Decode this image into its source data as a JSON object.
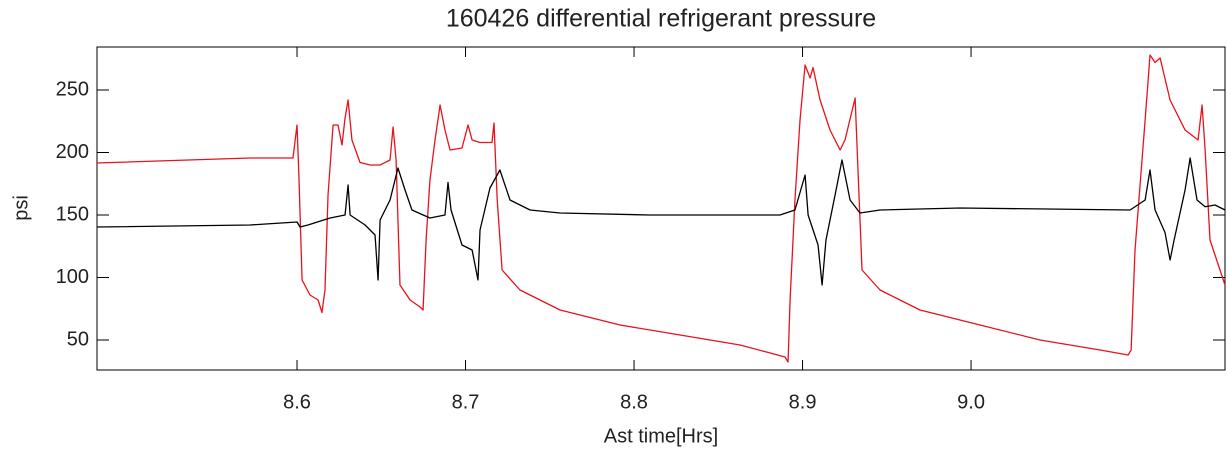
{
  "chart_data": {
    "type": "line",
    "title": "160426 differential refrigerant pressure",
    "xlabel": "Ast time[Hrs]",
    "ylabel": "psi",
    "xlim": [
      8.4813,
      9.1507
    ],
    "ylim": [
      26,
      284.4
    ],
    "xticks": [
      8.6,
      8.7,
      8.8,
      8.9,
      {
        "value": 9.0,
        "label": "9.0"
      }
    ],
    "yticks": [
      50,
      100,
      150,
      200,
      250
    ],
    "series": [
      {
        "name": "red",
        "color": "#e8121b",
        "x": [
          8.4813,
          8.5721,
          8.5976,
          8.6,
          8.6012,
          8.603,
          8.6077,
          8.6125,
          8.6148,
          8.6166,
          8.6184,
          8.6214,
          8.6243,
          8.6267,
          8.6285,
          8.6303,
          8.6326,
          8.6374,
          8.6433,
          8.6493,
          8.6552,
          8.657,
          8.6588,
          8.6611,
          8.6671,
          8.673,
          8.6748,
          8.6766,
          8.6789,
          8.6819,
          8.6849,
          8.6878,
          8.6908,
          8.6979,
          8.7015,
          8.7039,
          8.7086,
          8.7157,
          8.7169,
          8.7188,
          8.7217,
          8.7323,
          8.7561,
          8.7917,
          8.8273,
          8.8629,
          8.8896,
          8.8914,
          8.8926,
          8.8955,
          8.8985,
          8.9015,
          8.9045,
          8.9062,
          8.9104,
          8.9163,
          8.9223,
          8.9252,
          8.9312,
          8.9329,
          8.9353,
          8.946,
          8.9697,
          9.0053,
          9.0409,
          9.0766,
          9.0932,
          9.095,
          9.0973,
          9.1033,
          9.1062,
          9.1092,
          9.1122,
          9.1181,
          9.127,
          9.1347,
          9.1371,
          9.1389,
          9.1418,
          9.1507
        ],
        "values": [
          191.6,
          195.6,
          195.6,
          222,
          178,
          98,
          86,
          82,
          72,
          90,
          166,
          222,
          222,
          206,
          227.6,
          242,
          210,
          192,
          190,
          190,
          194,
          220.4,
          194,
          94,
          82,
          76.4,
          74,
          130,
          178,
          210,
          238,
          218,
          202,
          203.6,
          222,
          210,
          208,
          208,
          223.6,
          162,
          106,
          90,
          74,
          62,
          54,
          46,
          36.4,
          32.4,
          82,
          162,
          226,
          270,
          259.6,
          268,
          242,
          218,
          202,
          210,
          243.6,
          186,
          106,
          90,
          74,
          62,
          50,
          42,
          38,
          42,
          122,
          226,
          278,
          272,
          275.6,
          242,
          218,
          210,
          238,
          202,
          130,
          94
        ]
      },
      {
        "name": "black",
        "color": "#000000",
        "x": [
          8.4813,
          8.5721,
          8.6,
          8.6018,
          8.6065,
          8.6196,
          8.6285,
          8.6303,
          8.6315,
          8.6404,
          8.6463,
          8.6481,
          8.6493,
          8.6552,
          8.6599,
          8.6641,
          8.6682,
          8.6789,
          8.6878,
          8.6896,
          8.6914,
          8.6979,
          8.7039,
          8.7074,
          8.7086,
          8.7145,
          8.7204,
          8.7264,
          8.7383,
          8.7561,
          8.8095,
          8.8866,
          8.8955,
          8.9015,
          8.9033,
          8.9092,
          8.9116,
          8.9139,
          8.9193,
          8.9234,
          8.9282,
          8.9341,
          8.946,
          8.9935,
          9.0944,
          9.1033,
          9.1062,
          9.1092,
          9.1151,
          9.1181,
          9.1205,
          9.127,
          9.13,
          9.1341,
          9.1389,
          9.1448,
          9.1507
        ],
        "values": [
          140.4,
          142,
          144.4,
          140.4,
          142,
          147.6,
          150,
          174,
          150,
          142,
          134,
          98,
          146,
          162,
          187.6,
          170,
          154,
          147.6,
          150,
          176,
          154,
          126,
          122,
          98,
          138,
          171.6,
          186,
          162,
          154,
          151.6,
          150,
          150,
          154,
          182,
          150,
          126,
          94,
          130,
          166,
          194,
          162,
          151.6,
          154,
          155.6,
          154,
          162,
          186,
          154,
          136,
          114,
          130,
          170,
          195.6,
          162,
          156.6,
          158,
          154
        ]
      }
    ]
  }
}
